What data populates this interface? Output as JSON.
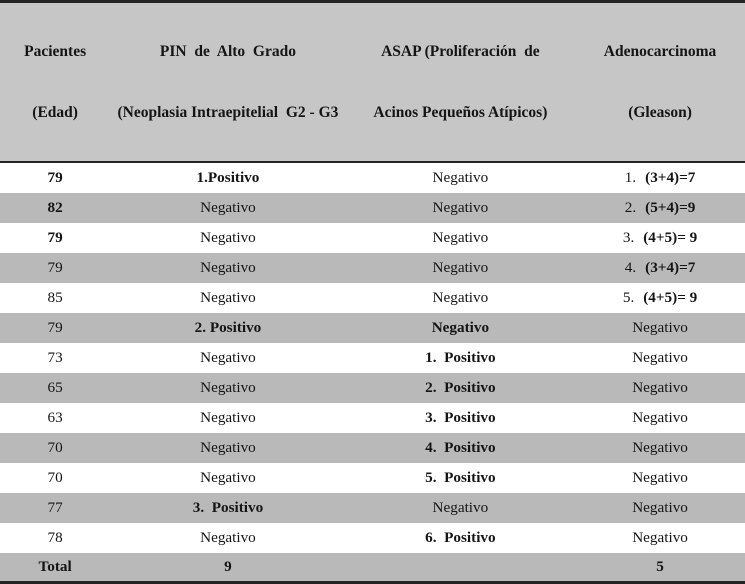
{
  "table": {
    "headers": {
      "col1_line1": "Pacientes",
      "col1_line2": "(Edad)",
      "col2_line1": "PIN  de  Alto  Grado",
      "col2_line2": "(Neoplasia Intraepitelial  G2 - G3",
      "col3_line1": "ASAP (Proliferación  de",
      "col3_line2": "Acinos Pequeños Atípicos)",
      "col4_line1": "Adenocarcinoma",
      "col4_line2": "(Gleason)"
    },
    "rows": [
      {
        "age": "79",
        "pin": "1.Positivo",
        "asap": "Negativo",
        "g_num": "1.",
        "g_val": "(3+4)=7"
      },
      {
        "age": "82",
        "pin": "Negativo",
        "asap": "Negativo",
        "g_num": "2.",
        "g_val": "(5+4)=9"
      },
      {
        "age": "79",
        "pin": "Negativo",
        "asap": "Negativo",
        "g_num": "3.",
        "g_val": "(4+5)= 9"
      },
      {
        "age": "79",
        "pin": "Negativo",
        "asap": "Negativo",
        "g_num": "4.",
        "g_val": "(3+4)=7"
      },
      {
        "age": "85",
        "pin": "Negativo",
        "asap": "Negativo",
        "g_num": "5.",
        "g_val": "(4+5)= 9"
      },
      {
        "age": "79",
        "pin": "2. Positivo",
        "asap": "Negativo",
        "gleason": "Negativo"
      },
      {
        "age": "73",
        "pin": "Negativo",
        "asap": "1.  Positivo",
        "gleason": "Negativo"
      },
      {
        "age": "65",
        "pin": "Negativo",
        "asap": "2.  Positivo",
        "gleason": "Negativo"
      },
      {
        "age": "63",
        "pin": "Negativo",
        "asap": "3.  Positivo",
        "gleason": "Negativo"
      },
      {
        "age": "70",
        "pin": "Negativo",
        "asap": "4.  Positivo",
        "gleason": "Negativo"
      },
      {
        "age": "70",
        "pin": "Negativo",
        "asap": "5.  Positivo",
        "gleason": "Negativo"
      },
      {
        "age": "77",
        "pin": "3.  Positivo",
        "asap": "Negativo",
        "gleason": "Negativo"
      },
      {
        "age": "78",
        "pin": "Negativo",
        "asap": "6.  Positivo",
        "gleason": "Negativo"
      }
    ],
    "total": {
      "label": "Total",
      "pin_total": "9",
      "asap_total": "",
      "gleason_total": "5"
    },
    "colors": {
      "stripe_gray": "#b9b9b9",
      "header_gray": "#c6c6c6",
      "rule_dark": "#242424"
    }
  }
}
